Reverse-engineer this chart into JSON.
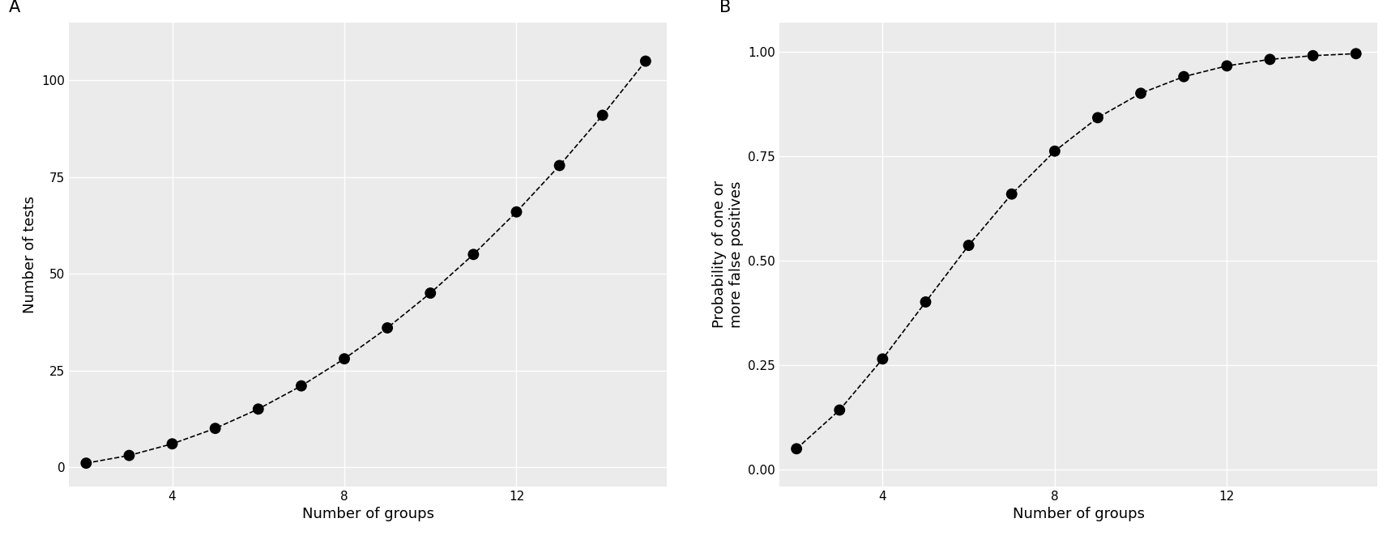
{
  "groups": [
    2,
    3,
    4,
    5,
    6,
    7,
    8,
    9,
    10,
    11,
    12,
    13,
    14,
    15
  ],
  "background_color": "#EBEBEB",
  "fig_background": "white",
  "line_color": "black",
  "dot_color": "black",
  "dot_size": 10,
  "line_width": 1.2,
  "panel_a": {
    "ylabel": "Number of tests",
    "xlabel": "Number of groups",
    "yticks": [
      0,
      25,
      50,
      75,
      100
    ],
    "xticks": [
      4,
      8,
      12
    ],
    "ylim": [
      -5,
      115
    ],
    "xlim": [
      1.6,
      15.5
    ]
  },
  "panel_b": {
    "ylabel": "Probability of one or\nmore false positives",
    "xlabel": "Number of groups",
    "yticks": [
      0.0,
      0.25,
      0.5,
      0.75,
      1.0
    ],
    "xticks": [
      4,
      8,
      12
    ],
    "ylim": [
      -0.04,
      1.07
    ],
    "xlim": [
      1.6,
      15.5
    ]
  },
  "label_a": "A",
  "label_b": "B",
  "label_fontsize": 15,
  "axis_label_fontsize": 13,
  "tick_fontsize": 11,
  "grid_color": "white",
  "grid_linewidth": 1.0,
  "alpha": 0.05
}
